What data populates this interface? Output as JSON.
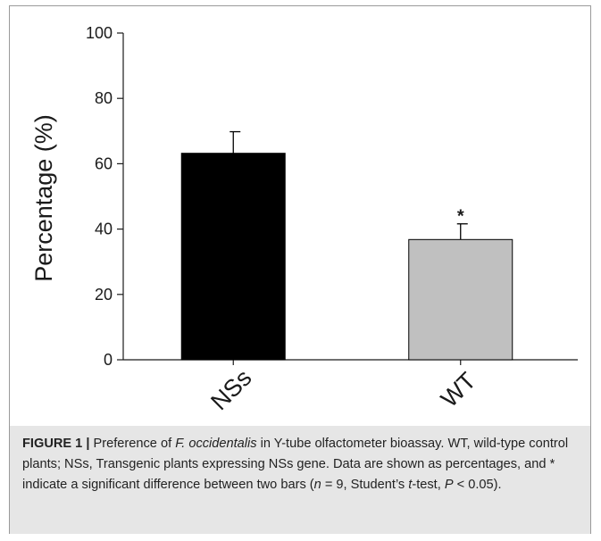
{
  "chart_data": {
    "type": "bar",
    "categories": [
      "NSs",
      "WT"
    ],
    "values": [
      63.2,
      36.8
    ],
    "errors": [
      6.6,
      4.8
    ],
    "bar_colors": [
      "#000000",
      "#c0c0c0"
    ],
    "annotations": [
      null,
      "*"
    ],
    "ylabel": "Percentage (%)",
    "xlabel": "",
    "ylim": [
      0,
      100
    ],
    "yticks": [
      "0",
      "20",
      "40",
      "60",
      "80",
      "100"
    ],
    "grid": false
  },
  "caption": {
    "figure_label": "FIGURE 1 |",
    "text_1": " Preference of ",
    "species": "F. occidentalis",
    "text_2": " in Y-tube olfactometer bioassay. WT, wild-type control plants; NSs, Transgenic plants expressing NSs gene. Data are shown as percentages, and * indicate a significant difference between two bars (",
    "n_symbol": "n",
    "text_3": " = 9, Student’s ",
    "t_symbol": "t",
    "text_4": "-test, ",
    "p_symbol": "P",
    "text_5": " < 0.05)."
  }
}
